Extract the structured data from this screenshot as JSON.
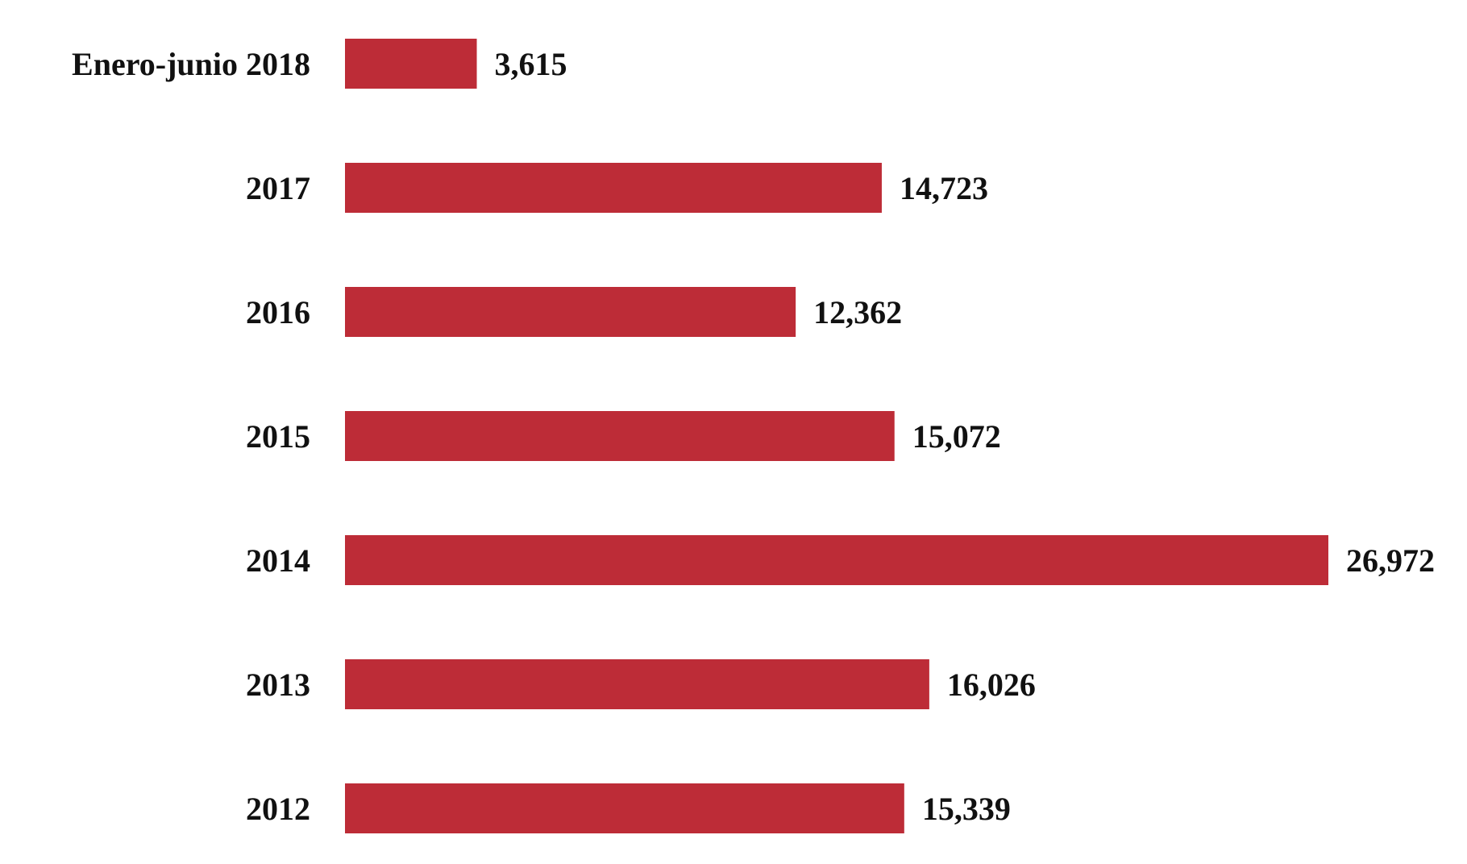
{
  "chart_data": {
    "type": "bar",
    "orientation": "horizontal",
    "categories": [
      "Enero-junio 2018",
      "2017",
      "2016",
      "2015",
      "2014",
      "2013",
      "2012"
    ],
    "values": [
      3615,
      14723,
      12362,
      15072,
      26972,
      16026,
      15339
    ],
    "value_labels": [
      "3,615",
      "14,723",
      "12,362",
      "15,072",
      "26,972",
      "16,026",
      "15,339"
    ],
    "title": "",
    "xlabel": "",
    "ylabel": "",
    "xlim": [
      0,
      26972
    ],
    "grid": false,
    "legend": "none",
    "bar_color": "#bd2c37"
  }
}
